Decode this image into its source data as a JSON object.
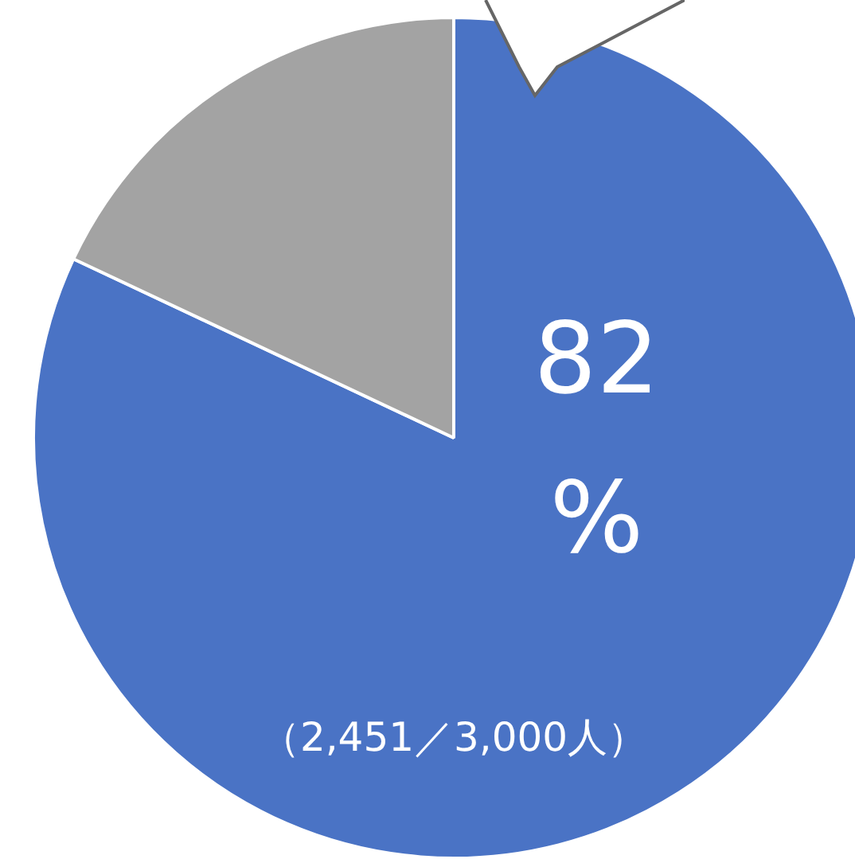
{
  "chart_data": {
    "type": "pie",
    "categories": [
      null,
      null
    ],
    "values": [
      82,
      18
    ],
    "colors": [
      "#4a73c5",
      "#a3a3a3"
    ],
    "value_labels": [
      "82\n%",
      null
    ],
    "legend": false,
    "annotations": [
      "（2,451／3,000人）"
    ]
  }
}
